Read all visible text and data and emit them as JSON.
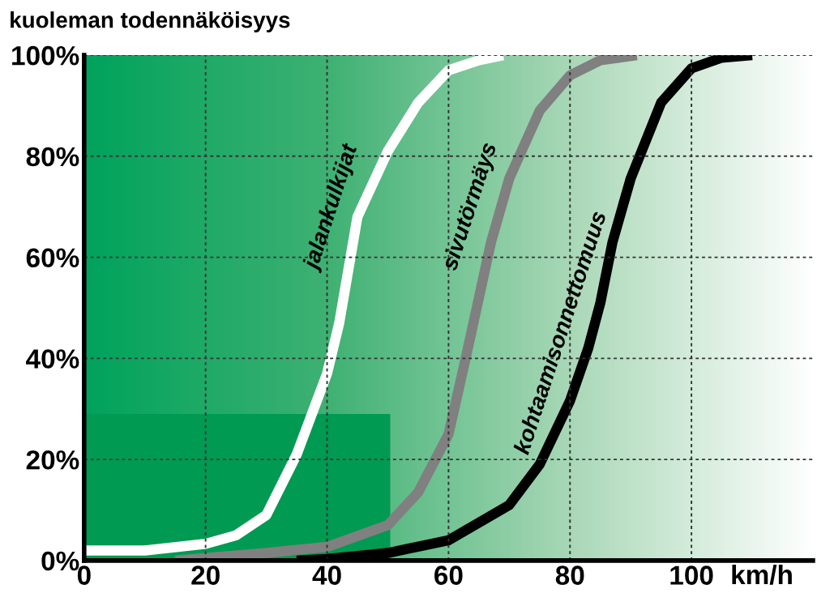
{
  "chart_data": {
    "type": "line",
    "ylabel": "kuoleman todennäköisyys",
    "xlabel": "km/h",
    "xlim": [
      0,
      120
    ],
    "ylim": [
      0,
      100
    ],
    "xticks": [
      0,
      20,
      40,
      60,
      80,
      100
    ],
    "yticks": [
      {
        "value": 0,
        "label": "0%"
      },
      {
        "value": 20,
        "label": "20%"
      },
      {
        "value": 40,
        "label": "40%"
      },
      {
        "value": 60,
        "label": "60%"
      },
      {
        "value": 80,
        "label": "80%"
      },
      {
        "value": 100,
        "label": "100%"
      }
    ],
    "grid": true,
    "line_style": "solid",
    "marker": "none",
    "series": [
      {
        "name": "jalankulkijat",
        "color": "#ffffff",
        "x": [
          0,
          10,
          20,
          25,
          30,
          35,
          40,
          42,
          45,
          50,
          55,
          60,
          65,
          69
        ],
        "values": [
          2,
          2,
          3.3,
          5,
          9,
          21,
          37,
          47,
          68,
          81,
          90.6,
          97,
          99,
          100
        ]
      },
      {
        "name": "sivutörmäys",
        "color": "#808080",
        "x": [
          15,
          20,
          30,
          40,
          50,
          55,
          60,
          63,
          65,
          67,
          70,
          75,
          80,
          85,
          91
        ],
        "values": [
          0,
          0.5,
          1.5,
          2.7,
          7,
          13.5,
          25,
          41,
          52,
          63,
          75.6,
          89,
          96,
          99,
          100
        ]
      },
      {
        "name": "kohtaamisonnettomuus",
        "color": "#000000",
        "x": [
          35,
          40,
          50,
          60,
          70,
          75,
          80,
          83,
          85,
          87,
          90,
          95,
          100,
          105,
          110
        ],
        "values": [
          0,
          0.3,
          1.5,
          4,
          11,
          19,
          31.6,
          42,
          51,
          63,
          75.6,
          90.6,
          97.4,
          99.5,
          100
        ]
      }
    ]
  }
}
